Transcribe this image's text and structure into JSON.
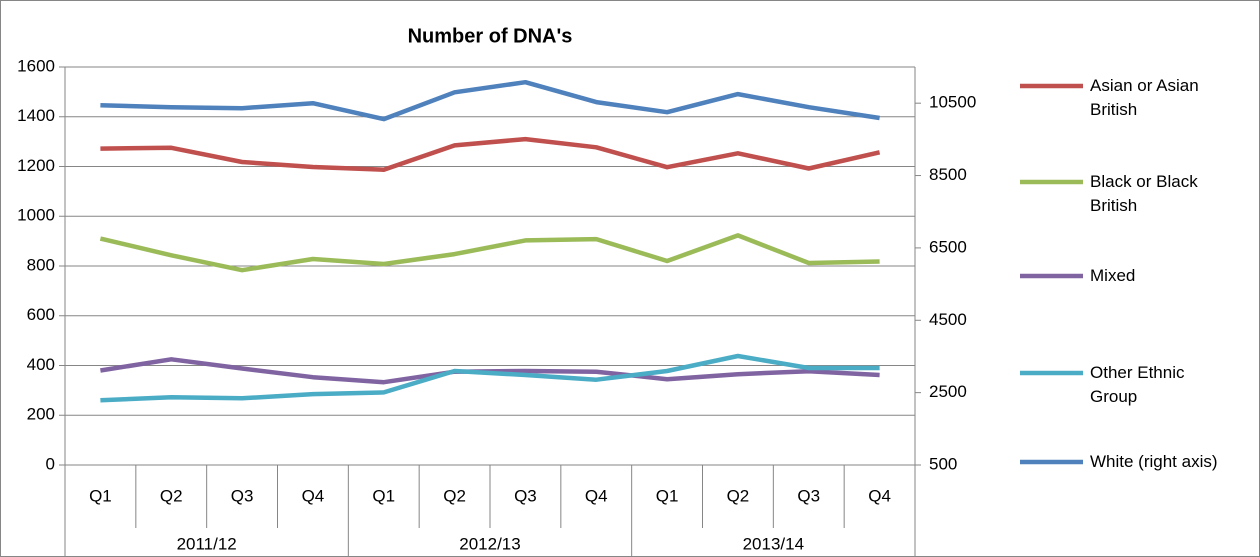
{
  "chart_data": {
    "type": "line",
    "title": "Number of DNA's",
    "categories": [
      "Q1",
      "Q2",
      "Q3",
      "Q4",
      "Q1",
      "Q2",
      "Q3",
      "Q4",
      "Q1",
      "Q2",
      "Q3",
      "Q4"
    ],
    "category_groups": [
      "2011/12",
      "2012/13",
      "2013/14"
    ],
    "ylim": [
      0,
      1600
    ],
    "yticks": [
      0,
      200,
      400,
      600,
      800,
      1000,
      1200,
      1400,
      1600
    ],
    "y2lim": [
      500,
      11500
    ],
    "y2ticks": [
      500,
      2500,
      4500,
      6500,
      8500,
      10500
    ],
    "grid": true,
    "legend": "right",
    "series": [
      {
        "name": "Asian or Asian British",
        "color": "#c0504d",
        "values": [
          1272,
          1275,
          1218,
          1198,
          1187,
          1285,
          1310,
          1277,
          1197,
          1253,
          1192,
          1257
        ]
      },
      {
        "name": "Black or Black British",
        "color": "#9bbb59",
        "values": [
          910,
          843,
          783,
          828,
          808,
          848,
          903,
          908,
          820,
          923,
          812,
          818
        ]
      },
      {
        "name": "Mixed",
        "color": "#8064a2",
        "values": [
          380,
          425,
          388,
          353,
          333,
          375,
          378,
          375,
          345,
          365,
          377,
          362
        ]
      },
      {
        "name": "Other Ethnic Group",
        "color": "#4bacc6",
        "values": [
          260,
          272,
          268,
          285,
          292,
          378,
          362,
          343,
          378,
          438,
          390,
          390
        ]
      },
      {
        "name": "White (right axis)",
        "color": "#4f81bd",
        "axis": "y2",
        "values": [
          10445,
          10390,
          10360,
          10500,
          10060,
          10800,
          11080,
          10530,
          10250,
          10750,
          10390,
          10090
        ]
      }
    ]
  }
}
